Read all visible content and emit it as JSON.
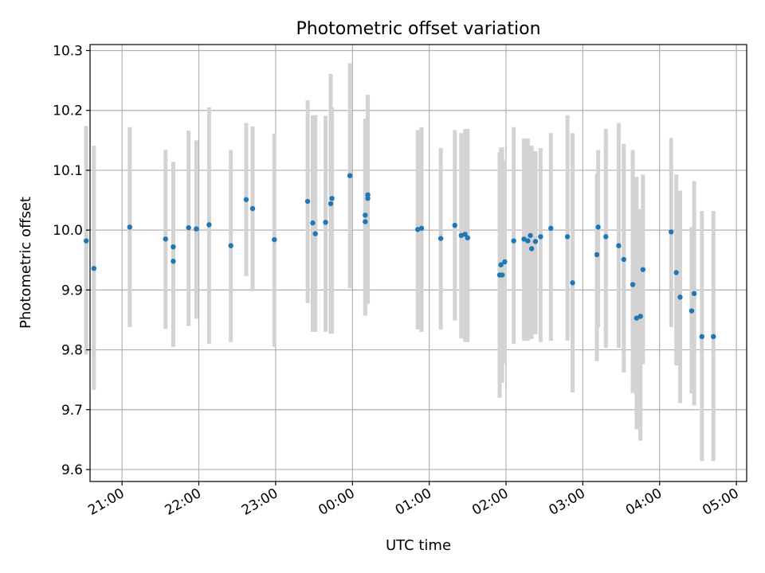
{
  "chart_data": {
    "type": "scatter",
    "title": "Photometric offset variation",
    "xlabel": "UTC time",
    "ylabel": "Photometric offset",
    "x_axis_type": "time-of-night",
    "xlim": [
      "20:35",
      "05:08"
    ],
    "ylim": [
      9.58,
      10.31
    ],
    "grid": true,
    "x_ticks": [
      "21:00",
      "22:00",
      "23:00",
      "00:00",
      "01:00",
      "02:00",
      "03:00",
      "04:00",
      "05:00"
    ],
    "y_ticks": [
      "9.6",
      "9.7",
      "9.8",
      "9.9",
      "10.0",
      "10.1",
      "10.2",
      "10.3"
    ],
    "point_color": "#1f77b4",
    "errorbar_color": "#d3d3d3",
    "series": [
      {
        "x": [
          "20:32",
          "20:38",
          "21:06",
          "21:34",
          "21:40",
          "21:40",
          "21:52",
          "21:58",
          "22:08",
          "22:25",
          "22:37",
          "22:42",
          "22:59",
          "23:25",
          "23:29",
          "23:31",
          "23:39",
          "23:43",
          "23:44",
          "23:58",
          "00:10",
          "00:10",
          "00:12",
          "00:12",
          "00:51",
          "00:54",
          "01:09",
          "01:20",
          "01:25",
          "01:28",
          "01:30",
          "01:55",
          "01:56",
          "01:57",
          "01:59",
          "02:06",
          "02:14",
          "02:17",
          "02:19",
          "02:20",
          "02:23",
          "02:27",
          "02:35",
          "02:48",
          "02:52",
          "03:11",
          "03:12",
          "03:18",
          "03:28",
          "03:32",
          "03:39",
          "03:42",
          "03:45",
          "03:47",
          "04:09",
          "04:13",
          "04:16",
          "04:25",
          "04:27",
          "04:33",
          "04:42"
        ],
        "y": [
          9.982,
          9.936,
          10.005,
          9.985,
          9.972,
          9.948,
          10.004,
          10.002,
          10.009,
          9.974,
          10.051,
          10.036,
          9.984,
          10.048,
          10.012,
          9.994,
          10.013,
          10.044,
          10.053,
          10.091,
          10.025,
          10.014,
          10.053,
          10.059,
          10.001,
          10.003,
          9.986,
          10.008,
          9.991,
          9.993,
          9.987,
          9.925,
          9.942,
          9.925,
          9.947,
          9.982,
          9.985,
          9.982,
          9.991,
          9.969,
          9.981,
          9.989,
          10.003,
          9.989,
          9.912,
          9.959,
          10.005,
          9.989,
          9.974,
          9.951,
          9.909,
          9.853,
          9.856,
          9.934,
          9.997,
          9.929,
          9.888,
          9.865,
          9.894,
          9.822,
          9.822
        ],
        "y_lower": [
          9.792,
          9.733,
          9.838,
          9.835,
          9.805,
          9.805,
          9.84,
          9.852,
          9.81,
          9.813,
          9.923,
          9.898,
          9.805,
          9.878,
          9.83,
          9.83,
          9.83,
          9.827,
          9.827,
          9.903,
          9.857,
          9.857,
          9.877,
          9.877,
          9.834,
          9.83,
          9.834,
          9.849,
          9.819,
          9.813,
          9.813,
          9.72,
          9.745,
          9.745,
          9.777,
          9.81,
          9.815,
          9.815,
          9.818,
          9.818,
          9.826,
          9.813,
          9.815,
          9.815,
          9.729,
          9.781,
          9.838,
          9.803,
          9.803,
          9.762,
          9.728,
          9.667,
          9.648,
          9.776,
          9.838,
          9.774,
          9.711,
          9.727,
          9.707,
          9.614,
          9.614
        ],
        "y_upper": [
          10.174,
          10.141,
          10.172,
          10.134,
          10.114,
          10.114,
          10.166,
          10.15,
          10.205,
          10.134,
          10.179,
          10.173,
          10.161,
          10.217,
          10.192,
          10.192,
          10.191,
          10.261,
          10.205,
          10.279,
          10.186,
          10.186,
          10.226,
          10.226,
          10.167,
          10.172,
          10.137,
          10.167,
          10.162,
          10.169,
          10.169,
          10.13,
          10.138,
          10.138,
          10.117,
          10.172,
          10.153,
          10.153,
          10.141,
          10.141,
          10.132,
          10.137,
          10.162,
          10.192,
          10.162,
          10.094,
          10.134,
          10.169,
          10.179,
          10.144,
          10.134,
          10.089,
          10.035,
          10.093,
          10.154,
          10.093,
          10.066,
          10.005,
          10.082,
          10.032,
          10.032
        ]
      }
    ]
  }
}
